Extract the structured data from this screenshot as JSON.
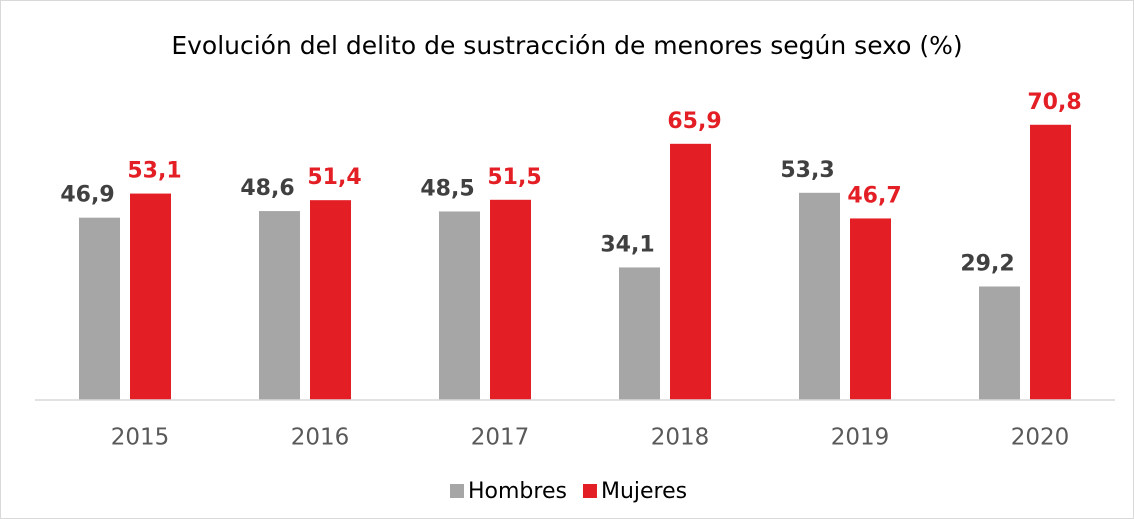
{
  "chart_data": {
    "type": "bar",
    "title": "Evolución del delito de sustracción de menores según sexo (%)",
    "categories": [
      "2015",
      "2016",
      "2017",
      "2018",
      "2019",
      "2020"
    ],
    "series": [
      {
        "name": "Hombres",
        "color": "#a6a6a6",
        "label_color": "#404040",
        "values": [
          46.9,
          48.6,
          48.5,
          34.1,
          53.3,
          29.2
        ],
        "value_labels": [
          "46,9",
          "48,6",
          "48,5",
          "34,1",
          "53,3",
          "29,2"
        ]
      },
      {
        "name": "Mujeres",
        "color": "#e31e24",
        "label_color": "#e31e24",
        "values": [
          53.1,
          51.4,
          51.5,
          65.9,
          46.7,
          70.8
        ],
        "value_labels": [
          "53,1",
          "51,4",
          "51,5",
          "65,9",
          "46,7",
          "70,8"
        ]
      }
    ],
    "ylim": [
      0,
      80
    ],
    "legend": "bottom"
  }
}
